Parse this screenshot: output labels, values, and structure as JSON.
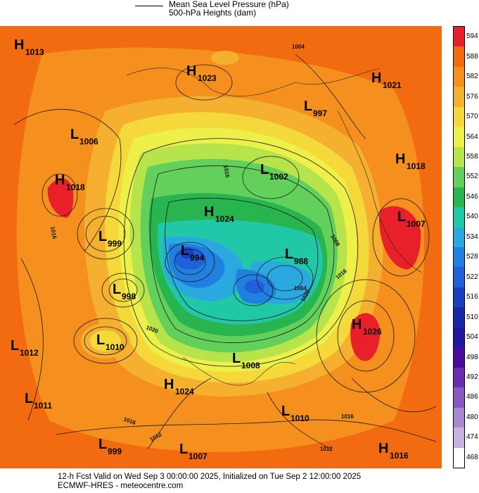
{
  "legend": {
    "line_label_1": "Mean Sea Level Pressure (hPa)",
    "line_label_2": "500-hPa Heights (dam)"
  },
  "colorbar": {
    "ticks": [
      "594",
      "588",
      "582",
      "576",
      "570",
      "564",
      "558",
      "552",
      "546",
      "540",
      "534",
      "528",
      "522",
      "516",
      "510",
      "504",
      "498",
      "492",
      "486",
      "480",
      "474",
      "468"
    ],
    "colors": [
      "#e8202a",
      "#f26b10",
      "#f5901e",
      "#f5b030",
      "#f5d83a",
      "#eef04a",
      "#b6e44a",
      "#62d05a",
      "#28b44e",
      "#20c8a8",
      "#2aa8e0",
      "#2080e0",
      "#2060d8",
      "#1840c0",
      "#1828a8",
      "#2018a0",
      "#4a0c9a",
      "#6a2cb0",
      "#8a58c0",
      "#a888d0",
      "#c8b0e0",
      "#ffffff"
    ]
  },
  "map": {
    "pressure_centers": [
      {
        "type": "H",
        "value": "1013"
      },
      {
        "type": "H",
        "value": "1023"
      },
      {
        "type": "H",
        "value": "1021"
      },
      {
        "type": "L",
        "value": "997"
      },
      {
        "type": "L",
        "value": "1006"
      },
      {
        "type": "H",
        "value": "1018"
      },
      {
        "type": "L",
        "value": "1002"
      },
      {
        "type": "H",
        "value": "1018"
      },
      {
        "type": "H",
        "value": "1024"
      },
      {
        "type": "L",
        "value": "1007"
      },
      {
        "type": "L",
        "value": "999"
      },
      {
        "type": "L",
        "value": "994"
      },
      {
        "type": "L",
        "value": "988"
      },
      {
        "type": "L",
        "value": "998"
      },
      {
        "type": "H",
        "value": "1026"
      },
      {
        "type": "L",
        "value": "1012"
      },
      {
        "type": "L",
        "value": "1010"
      },
      {
        "type": "L",
        "value": "1008"
      },
      {
        "type": "H",
        "value": "1024"
      },
      {
        "type": "L",
        "value": "1011"
      },
      {
        "type": "L",
        "value": "1010"
      },
      {
        "type": "L",
        "value": "999"
      },
      {
        "type": "L",
        "value": "1007"
      },
      {
        "type": "H",
        "value": "1016"
      }
    ],
    "isobar_labels": [
      "1004",
      "1016",
      "1016",
      "1008",
      "1004",
      "1020",
      "1016",
      "1020",
      "1016",
      "1016",
      "1012",
      "1012"
    ]
  },
  "footer": {
    "line_1": "12-h Fcst Valid on Wed Sep  3 00:00:00 2025, Initialized on Tue Sep  2 12:00:00 2025",
    "line_2": "ECMWF-HRES  - meteocentre.com"
  }
}
